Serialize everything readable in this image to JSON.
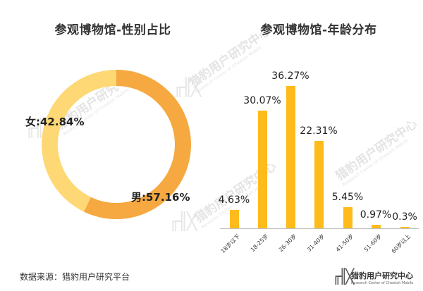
{
  "left_title": "参观博物馆-性别占比",
  "right_title": "参观博物馆-年龄分布",
  "footer": {
    "source": "数据来源：猎豹用户研究平台",
    "brand_cn": "猎豹用户研究中心",
    "brand_en": "Research Center of Cheetah Mobile",
    "brand_logo": "╓╢╳"
  },
  "watermark": {
    "cn": "猎豹用户研究中心",
    "en": "Research Center of Cheetah Mobile",
    "logo": "╓╢╳"
  },
  "colors": {
    "male": "#f5a940",
    "female": "#fdd874",
    "bar": "#ffbb1c",
    "axis": "#bfbfbf"
  },
  "donut_labels": {
    "female": "女:42.84%",
    "male": "男:57.16%"
  },
  "bar_labels": [
    "4.63%",
    "30.07%",
    "36.27%",
    "22.31%",
    "5.45%",
    "0.97%",
    "0.3%"
  ],
  "bar_categories": [
    "18岁以下",
    "18-25岁",
    "26-30岁",
    "31-40岁",
    "41-50岁",
    "51-60岁",
    "60岁以上"
  ],
  "chart_data": [
    {
      "type": "pie",
      "title": "参观博物馆-性别占比",
      "variant": "donut",
      "categories": [
        "男",
        "女"
      ],
      "values": [
        57.16,
        42.84
      ],
      "colors": [
        "#f5a940",
        "#fdd874"
      ],
      "unit": "%"
    },
    {
      "type": "bar",
      "title": "参观博物馆-年龄分布",
      "categories": [
        "18岁以下",
        "18-25岁",
        "26-30岁",
        "31-40岁",
        "41-50岁",
        "51-60岁",
        "60岁以上"
      ],
      "values": [
        4.63,
        30.07,
        36.27,
        22.31,
        5.45,
        0.97,
        0.3
      ],
      "xlabel": "",
      "ylabel": "",
      "unit": "%",
      "grid": false,
      "legend": "none",
      "color": "#ffbb1c"
    }
  ]
}
